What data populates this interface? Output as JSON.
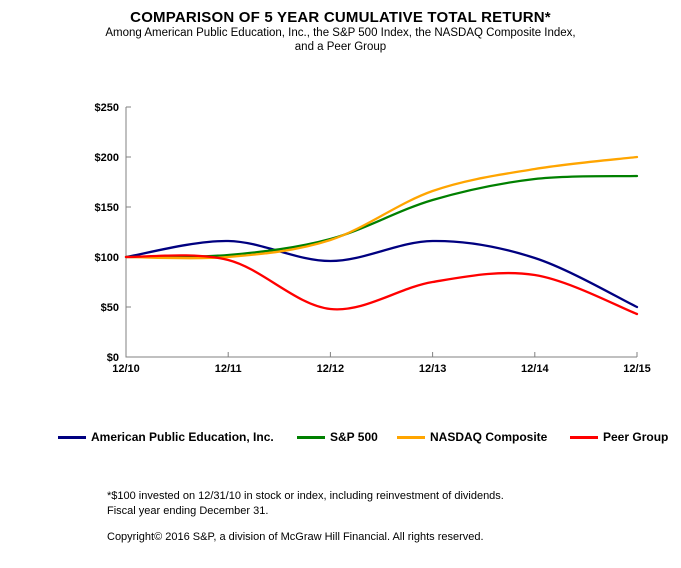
{
  "header": {
    "title": "COMPARISON OF 5 YEAR CUMULATIVE TOTAL RETURN*",
    "subtitle_line1": "Among American Public Education, Inc., the S&P 500 Index, the NASDAQ Composite Index,",
    "subtitle_line2": "and a Peer Group"
  },
  "chart_data": {
    "type": "line",
    "title": "COMPARISON OF 5 YEAR CUMULATIVE TOTAL RETURN*",
    "categories": [
      "12/10",
      "12/11",
      "12/12",
      "12/13",
      "12/14",
      "12/15"
    ],
    "y_tick_values": [
      0,
      50,
      100,
      150,
      200,
      250
    ],
    "y_tick_labels": [
      "$0",
      "$50",
      "$100",
      "$150",
      "$200",
      "$250"
    ],
    "ylim": [
      0,
      250
    ],
    "grid": false,
    "legend_position": "bottom",
    "axis_color": "#808080",
    "series": [
      {
        "name": "American Public Education, Inc.",
        "color": "#000080",
        "values": [
          100,
          116,
          96,
          116,
          99,
          50
        ]
      },
      {
        "name": "S&P 500",
        "color": "#008000",
        "values": [
          100,
          102,
          118,
          157,
          178,
          181
        ]
      },
      {
        "name": "NASDAQ Composite",
        "color": "#FFA500",
        "values": [
          100,
          100,
          117,
          166,
          188,
          200
        ]
      },
      {
        "name": "Peer Group",
        "color": "#FF0000",
        "values": [
          100,
          97,
          48,
          75,
          82,
          43
        ]
      }
    ]
  },
  "footnotes": {
    "line1": "*$100 invested on 12/31/10 in stock or index, including reinvestment of dividends.",
    "line2": "Fiscal year ending December 31.",
    "copyright": "Copyright© 2016 S&P, a division of McGraw Hill Financial. All rights reserved."
  }
}
